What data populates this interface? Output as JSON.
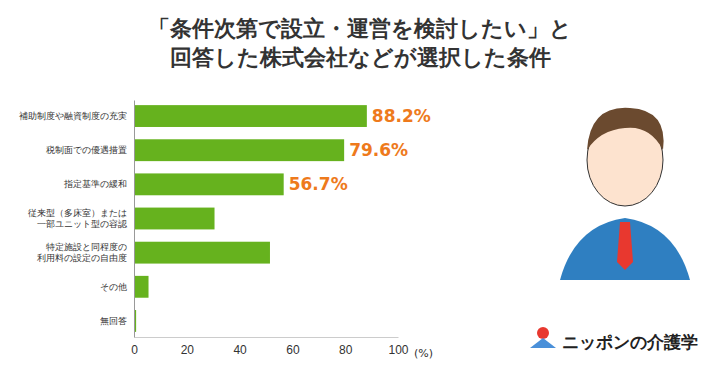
{
  "chart_data": {
    "type": "bar",
    "orientation": "horizontal",
    "title": "「条件次第で設立・運営を検討したい」と\n回答した株式会社などが選択した条件",
    "categories": [
      "補助制度や融資制度の充実",
      "税制面での優遇措置",
      "指定基準の緩和",
      "従来型（多床室）または\n一部ユニット型の容認",
      "特定施設と同程度の\n利用料の設定の自由度",
      "その他",
      "無回答"
    ],
    "values": [
      88.2,
      79.6,
      56.7,
      30.5,
      51.5,
      5.5,
      0.8
    ],
    "value_labels": [
      "88.2%",
      "79.6%",
      "56.7%",
      null,
      null,
      null,
      null
    ],
    "data_labels": true,
    "color": "#66b21e",
    "xlim": [
      0,
      100
    ],
    "xticks": [
      0,
      20,
      40,
      60,
      80,
      100
    ],
    "x_label": "(%)",
    "grid": false,
    "logo": "ニッポンの介護学"
  }
}
